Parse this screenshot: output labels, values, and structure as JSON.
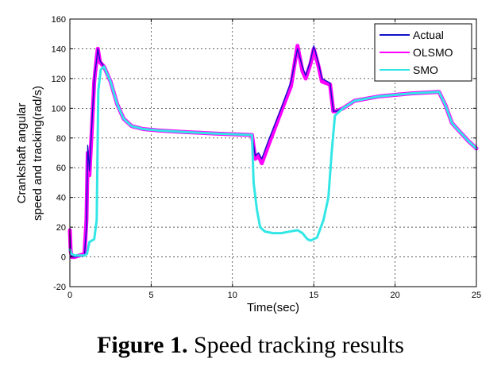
{
  "caption": {
    "label": "Figure 1.",
    "text": " Speed tracking results"
  },
  "chart_data": {
    "type": "line",
    "xlabel": "Time(sec)",
    "ylabel_lines": [
      "Crankshaft angular",
      "speed and tracking(rad/s)"
    ],
    "xlim": [
      0,
      25
    ],
    "ylim": [
      -20,
      160
    ],
    "xticks": [
      0,
      5,
      10,
      15,
      20,
      25
    ],
    "yticks": [
      -20,
      0,
      20,
      40,
      60,
      80,
      100,
      120,
      140,
      160
    ],
    "grid": true,
    "legend_position": "top-right",
    "series": [
      {
        "name": "Actual",
        "color": "#1010c8",
        "x": [
          0,
          0.05,
          0.12,
          0.3,
          0.9,
          1.02,
          1.1,
          1.2,
          1.35,
          1.5,
          1.65,
          1.72,
          1.85,
          2.1,
          2.5,
          2.9,
          3.3,
          3.8,
          4.5,
          5.5,
          7,
          9,
          11.2,
          11.4,
          11.6,
          11.8,
          12.2,
          13,
          13.6,
          14,
          14.3,
          14.5,
          14.8,
          15,
          15.3,
          15.5,
          16,
          16.2,
          16.4,
          16.8,
          17.5,
          19,
          21,
          22.7,
          23.1,
          23.5,
          24,
          24.5,
          25
        ],
        "y": [
          15,
          3,
          0,
          0,
          1,
          20,
          75,
          58,
          88,
          120,
          133,
          140,
          132,
          128,
          118,
          103,
          93,
          88,
          86,
          85,
          84,
          83,
          82,
          68,
          70,
          66,
          78,
          100,
          118,
          140,
          128,
          122,
          132,
          142,
          130,
          120,
          117,
          98,
          98,
          100,
          105,
          108,
          110,
          111,
          102,
          90,
          84,
          78,
          73
        ]
      },
      {
        "name": "OLSMO",
        "color": "#ff00ff",
        "x": [
          0,
          0.05,
          0.12,
          0.3,
          0.9,
          1.02,
          1.1,
          1.2,
          1.35,
          1.5,
          1.65,
          1.72,
          1.85,
          2.1,
          2.5,
          2.9,
          3.3,
          3.8,
          4.5,
          5.5,
          7,
          9,
          11.2,
          11.4,
          11.6,
          11.8,
          12.2,
          13,
          13.6,
          14,
          14.3,
          14.5,
          14.8,
          15,
          15.3,
          15.5,
          16,
          16.2,
          16.4,
          16.8,
          17.5,
          19,
          21,
          22.7,
          23.1,
          23.5,
          24,
          24.5,
          25
        ],
        "y": [
          18,
          4,
          0,
          0,
          2,
          25,
          70,
          55,
          85,
          118,
          134,
          140,
          131,
          128,
          118,
          103,
          93,
          88,
          86,
          85,
          84,
          83,
          82,
          66,
          68,
          63,
          75,
          98,
          115,
          142,
          125,
          120,
          130,
          140,
          128,
          118,
          116,
          98,
          98,
          100,
          105,
          108,
          110,
          111,
          102,
          90,
          84,
          78,
          73
        ]
      },
      {
        "name": "SMO",
        "color": "#33e6e6",
        "x": [
          0,
          0.1,
          0.3,
          0.9,
          1.05,
          1.2,
          1.5,
          1.65,
          1.75,
          1.9,
          2.1,
          2.5,
          2.9,
          3.3,
          3.8,
          4.5,
          5.5,
          7,
          9,
          11.2,
          11.3,
          11.5,
          11.7,
          12,
          12.5,
          13,
          13.5,
          14,
          14.3,
          14.6,
          14.8,
          15.2,
          15.6,
          15.9,
          16.1,
          16.3,
          16.5,
          16.8,
          17.5,
          19,
          21,
          22.7,
          23.1,
          23.5,
          24,
          24.5,
          25
        ],
        "y": [
          5,
          2,
          1,
          1,
          2,
          10,
          12,
          25,
          112,
          126,
          128,
          118,
          103,
          93,
          88,
          86,
          85,
          84,
          83,
          82,
          50,
          32,
          20,
          17,
          16,
          16,
          17,
          18,
          16,
          12,
          11,
          13,
          25,
          40,
          70,
          95,
          97,
          100,
          105,
          108,
          110,
          111,
          102,
          90,
          84,
          78,
          73
        ]
      }
    ]
  }
}
